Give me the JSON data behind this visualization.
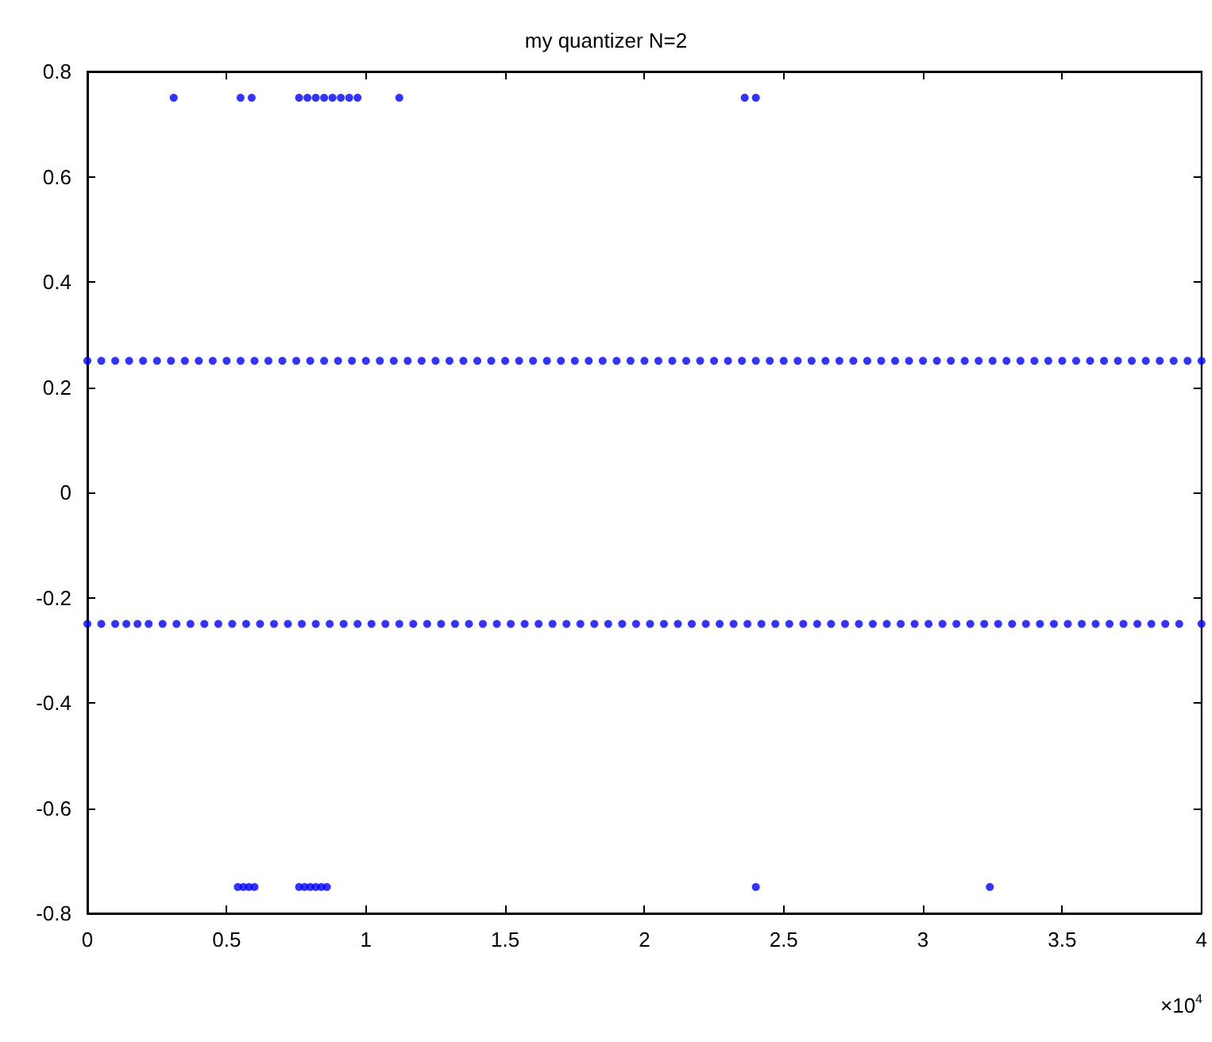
{
  "chart_data": {
    "type": "scatter",
    "title": "my quantizer N=2",
    "annotations": [
      "×10$^{4}$"
    ],
    "xlim": [
      0,
      4
    ],
    "xticks": [
      0,
      0.5,
      1,
      1.5,
      2,
      2.5,
      3,
      3.5,
      4
    ],
    "ylim": [
      -0.8,
      0.8
    ],
    "yticks": [
      -0.8,
      -0.6,
      -0.4,
      -0.2,
      0,
      0.2,
      0.4,
      0.6,
      0.8
    ],
    "grid": false,
    "marker": "circle",
    "series": [
      {
        "color": "#0000ff",
        "x": [
          0.31,
          0.55,
          0.59,
          0.76,
          0.79,
          0.82,
          0.85,
          0.88,
          0.91,
          0.94,
          0.97,
          1.12,
          2.36,
          2.4
        ],
        "values": [
          0.75,
          0.75,
          0.75,
          0.75,
          0.75,
          0.75,
          0.75,
          0.75,
          0.75,
          0.75,
          0.75,
          0.75,
          0.75,
          0.75
        ]
      },
      {
        "color": "#0000ff",
        "x": [
          0,
          0.05,
          0.1,
          0.15,
          0.2,
          0.25,
          0.3,
          0.35,
          0.4,
          0.45,
          0.5,
          0.55,
          0.6,
          0.65,
          0.7,
          0.75,
          0.8,
          0.85,
          0.9,
          0.95,
          1,
          1.05,
          1.1,
          1.15,
          1.2,
          1.25,
          1.3,
          1.35,
          1.4,
          1.45,
          1.5,
          1.55,
          1.6,
          1.65,
          1.7,
          1.75,
          1.8,
          1.85,
          1.9,
          1.95,
          2,
          2.05,
          2.1,
          2.15,
          2.2,
          2.25,
          2.3,
          2.35,
          2.4,
          2.45,
          2.5,
          2.55,
          2.6,
          2.65,
          2.7,
          2.75,
          2.8,
          2.85,
          2.9,
          2.95,
          3,
          3.05,
          3.1,
          3.15,
          3.2,
          3.25,
          3.3,
          3.35,
          3.4,
          3.45,
          3.5,
          3.55,
          3.6,
          3.65,
          3.7,
          3.75,
          3.8,
          3.85,
          3.9,
          3.95,
          4
        ],
        "values": [
          0.25,
          0.25,
          0.25,
          0.25,
          0.25,
          0.25,
          0.25,
          0.25,
          0.25,
          0.25,
          0.25,
          0.25,
          0.25,
          0.25,
          0.25,
          0.25,
          0.25,
          0.25,
          0.25,
          0.25,
          0.25,
          0.25,
          0.25,
          0.25,
          0.25,
          0.25,
          0.25,
          0.25,
          0.25,
          0.25,
          0.25,
          0.25,
          0.25,
          0.25,
          0.25,
          0.25,
          0.25,
          0.25,
          0.25,
          0.25,
          0.25,
          0.25,
          0.25,
          0.25,
          0.25,
          0.25,
          0.25,
          0.25,
          0.25,
          0.25,
          0.25,
          0.25,
          0.25,
          0.25,
          0.25,
          0.25,
          0.25,
          0.25,
          0.25,
          0.25,
          0.25,
          0.25,
          0.25,
          0.25,
          0.25,
          0.25,
          0.25,
          0.25,
          0.25,
          0.25,
          0.25,
          0.25,
          0.25,
          0.25,
          0.25,
          0.25,
          0.25,
          0.25,
          0.25,
          0.25,
          0.25
        ]
      },
      {
        "color": "#0000ff",
        "x": [
          0,
          0.05,
          0.1,
          0.14,
          0.18,
          0.22,
          0.27,
          0.32,
          0.37,
          0.42,
          0.47,
          0.52,
          0.57,
          0.62,
          0.67,
          0.72,
          0.77,
          0.82,
          0.87,
          0.92,
          0.97,
          1.02,
          1.07,
          1.12,
          1.17,
          1.22,
          1.27,
          1.32,
          1.37,
          1.42,
          1.47,
          1.52,
          1.57,
          1.62,
          1.67,
          1.72,
          1.77,
          1.82,
          1.87,
          1.92,
          1.97,
          2.02,
          2.07,
          2.12,
          2.17,
          2.22,
          2.27,
          2.32,
          2.37,
          2.42,
          2.47,
          2.52,
          2.57,
          2.62,
          2.67,
          2.72,
          2.77,
          2.82,
          2.87,
          2.92,
          2.97,
          3.02,
          3.07,
          3.12,
          3.17,
          3.22,
          3.27,
          3.32,
          3.37,
          3.42,
          3.47,
          3.52,
          3.57,
          3.62,
          3.67,
          3.72,
          3.77,
          3.82,
          3.87,
          3.92,
          4
        ],
        "values": [
          -0.25,
          -0.25,
          -0.25,
          -0.25,
          -0.25,
          -0.25,
          -0.25,
          -0.25,
          -0.25,
          -0.25,
          -0.25,
          -0.25,
          -0.25,
          -0.25,
          -0.25,
          -0.25,
          -0.25,
          -0.25,
          -0.25,
          -0.25,
          -0.25,
          -0.25,
          -0.25,
          -0.25,
          -0.25,
          -0.25,
          -0.25,
          -0.25,
          -0.25,
          -0.25,
          -0.25,
          -0.25,
          -0.25,
          -0.25,
          -0.25,
          -0.25,
          -0.25,
          -0.25,
          -0.25,
          -0.25,
          -0.25,
          -0.25,
          -0.25,
          -0.25,
          -0.25,
          -0.25,
          -0.25,
          -0.25,
          -0.25,
          -0.25,
          -0.25,
          -0.25,
          -0.25,
          -0.25,
          -0.25,
          -0.25,
          -0.25,
          -0.25,
          -0.25,
          -0.25,
          -0.25,
          -0.25,
          -0.25,
          -0.25,
          -0.25,
          -0.25,
          -0.25,
          -0.25,
          -0.25,
          -0.25,
          -0.25,
          -0.25,
          -0.25,
          -0.25,
          -0.25,
          -0.25,
          -0.25,
          -0.25,
          -0.25,
          -0.25,
          -0.25
        ]
      },
      {
        "color": "#0000ff",
        "x": [
          0.54,
          0.56,
          0.58,
          0.6,
          0.76,
          0.78,
          0.8,
          0.82,
          0.84,
          0.86,
          2.4,
          3.24
        ],
        "values": [
          -0.75,
          -0.75,
          -0.75,
          -0.75,
          -0.75,
          -0.75,
          -0.75,
          -0.75,
          -0.75,
          -0.75,
          -0.75,
          -0.75
        ]
      }
    ]
  }
}
